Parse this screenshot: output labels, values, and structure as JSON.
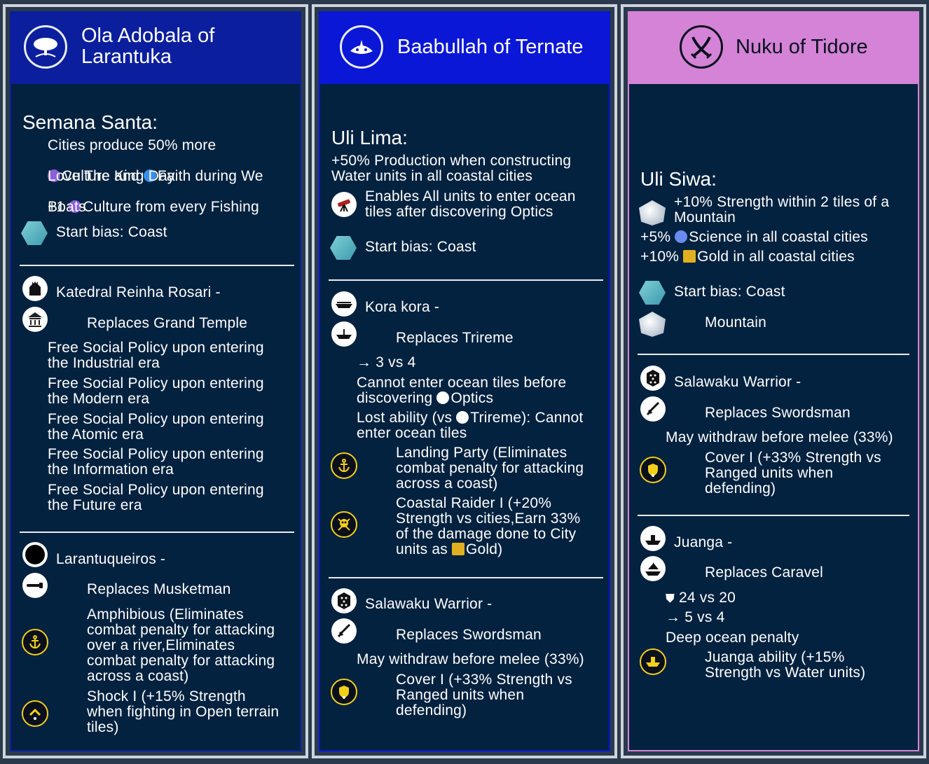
{
  "columns": {
    "c1": {
      "title_line1": "Ola Adobala of",
      "title_line2": "Larantuka",
      "ua_name": "Semana Santa:",
      "ua_l1": "Cities produce 50% more",
      "ua_l2a": "Culture and ",
      "ua_l2b": "Faith during We",
      "ua_l3": "Love The King Day",
      "ua_l4a": "+1 ",
      "ua_l4b": "Culture from every Fishing",
      "ua_l5": "Boats",
      "start_bias": "Start bias: Coast",
      "building_name": "Katedral Reinha Rosari -",
      "building_replaces": "Replaces Grand Temple",
      "building_effects": [
        "Free Social Policy upon entering\nthe Industrial era",
        "Free Social Policy upon entering\nthe Modern era",
        "Free Social Policy upon entering\nthe Atomic era",
        "Free Social Policy upon entering\nthe Information era",
        "Free Social Policy upon entering\nthe Future era"
      ],
      "unit_name": "Larantuqueiros -",
      "unit_replaces": "Replaces Musketman",
      "promo1": "Amphibious (Eliminates\ncombat penalty for attacking\nover a river,Eliminates\ncombat penalty for attacking\nacross a coast)",
      "promo2": "Shock I (+15% Strength\nwhen fighting in Open terrain\ntiles)"
    },
    "c2": {
      "title": "Baabullah of Ternate",
      "ua_name": "Uli Lima:",
      "ua_l1": "+50% Production when constructing\nWater units in all coastal cities",
      "ua_l2": "Enables All units to enter ocean\ntiles after discovering Optics",
      "start_bias": "Start bias: Coast",
      "unit1_name": "Kora kora -",
      "unit1_replaces": "Replaces Trireme",
      "unit1_stat": "3 vs 4",
      "unit1_note1a": "Cannot enter ocean tiles before",
      "unit1_note1b": "discovering ",
      "unit1_note1c": "Optics",
      "unit1_note2a": "Lost ability (vs ",
      "unit1_note2b": "Trireme): Cannot",
      "unit1_note2c": "enter ocean tiles",
      "promo1": "Landing Party (Eliminates\ncombat penalty for attacking\nacross a coast)",
      "promo2a": "Coastal Raider I (+20%\nStrength vs cities,Earn 33%\nof the damage done to City\nunits as ",
      "promo2b": "Gold)",
      "unit2_name": "Salawaku Warrior -",
      "unit2_replaces": "Replaces Swordsman",
      "unit2_note": "May withdraw before melee (33%)",
      "promo3": "Cover I (+33% Strength vs\nRanged units when\ndefending)"
    },
    "c3": {
      "title": "Nuku of Tidore",
      "ua_name": "Uli Siwa:",
      "ua_l1": "+10% Strength within 2 tiles of a\nMountain",
      "ua_l2a": "+5% ",
      "ua_l2b": "Science in all coastal cities",
      "ua_l3a": "+10% ",
      "ua_l3b": "Gold in all coastal cities",
      "start_bias": "Start bias: Coast",
      "start_bias2": "Mountain",
      "unit1_name": "Salawaku Warrior -",
      "unit1_replaces": "Replaces Swordsman",
      "unit1_note": "May withdraw before melee (33%)",
      "promo1": "Cover I (+33% Strength vs\nRanged units when\ndefending)",
      "unit2_name": "Juanga -",
      "unit2_replaces": "Replaces Caravel",
      "unit2_stat1": "24 vs 20",
      "unit2_stat2": "5 vs 4",
      "unit2_note": "Deep ocean penalty",
      "promo2": "Juanga ability (+15%\nStrength vs Water units)"
    }
  },
  "colors": {
    "c1_header": "#0b1f9e",
    "c2_header": "#0a17d6",
    "c3_header": "#d483d6",
    "panel_bg": "#03223f",
    "promo_ring": "#f2d01a"
  }
}
